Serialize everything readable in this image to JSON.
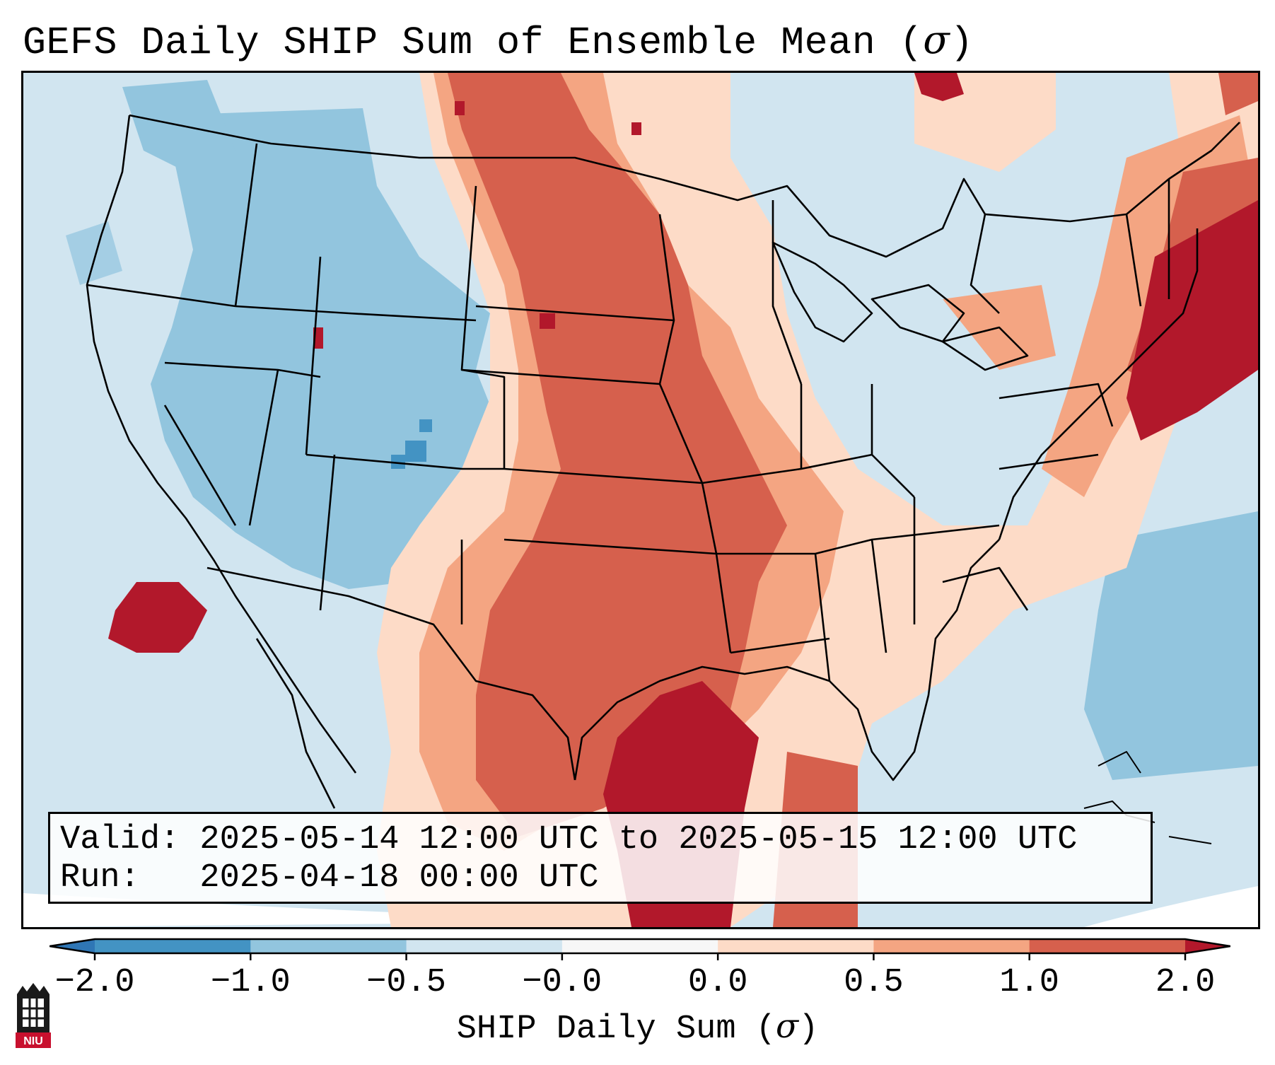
{
  "title": {
    "text": "GEFS Daily SHIP Sum of Ensemble Mean (",
    "symbol": "σ",
    "suffix": ")"
  },
  "info": {
    "valid_line": "Valid: 2025-05-14 12:00 UTC to 2025-05-15 12:00 UTC",
    "run_line": "Run:   2025-04-18 00:00 UTC"
  },
  "colorbar": {
    "label_text": "SHIP Daily Sum (",
    "label_symbol": "σ",
    "label_suffix": ")",
    "ticks": [
      "−2.0",
      "−1.0",
      "−0.5",
      "−0.0",
      "0.0",
      "0.5",
      "1.0",
      "2.0"
    ],
    "bins": [
      {
        "color": "#2f76b5"
      },
      {
        "color": "#4393c3"
      },
      {
        "color": "#92c5de"
      },
      {
        "color": "#d1e5f0"
      },
      {
        "color": "#f7f7f7"
      },
      {
        "color": "#fddbc7"
      },
      {
        "color": "#f4a582"
      },
      {
        "color": "#d6604d"
      },
      {
        "color": "#b2182b"
      }
    ]
  },
  "logo": {
    "text": "NIU"
  },
  "map_regions": {
    "description_colors": {
      "ocean_neutral": "#d1e5f0",
      "strong_negative": "#4393c3",
      "moderate_negative": "#92c5de",
      "slight_positive": "#fddbc7",
      "moderate_positive": "#f4a582",
      "strong_positive": "#d6604d",
      "extreme_positive": "#b2182b"
    }
  }
}
